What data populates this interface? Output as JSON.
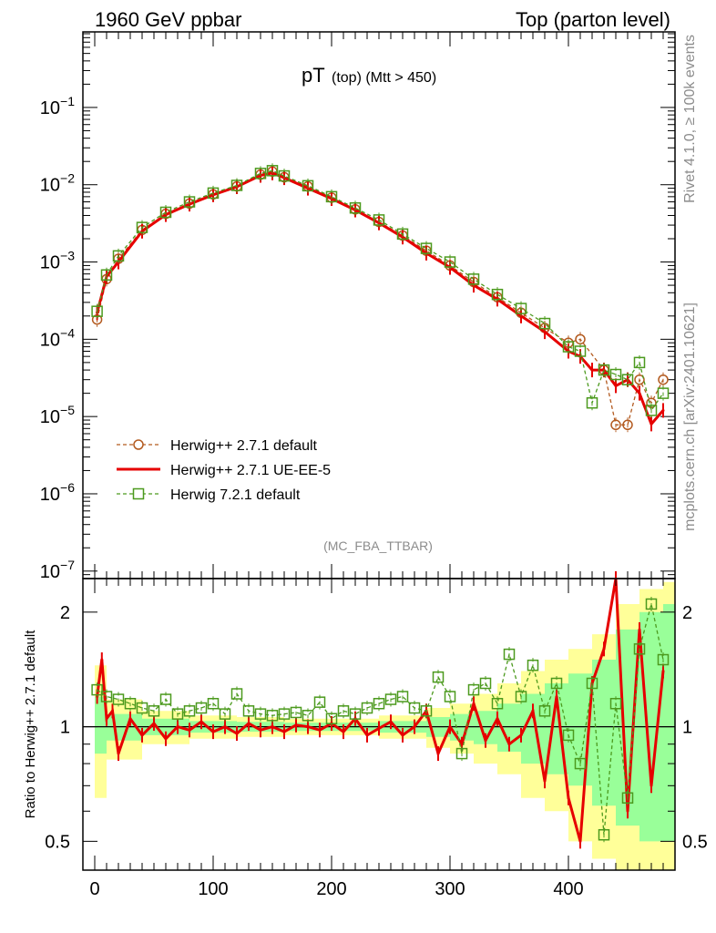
{
  "header": {
    "left": "1960 GeV ppbar",
    "right": "Top (parton level)"
  },
  "side_text": {
    "top": "Rivet 4.1.0, ≥ 100k events",
    "bottom": "mcplots.cern.ch [arXiv:2401.10621]"
  },
  "colors": {
    "herwigpp_default": "#b35a1f",
    "herwigpp_ueee5": "#e60000",
    "herwig721": "#4c9a1e",
    "band_yellow": "#ffff99",
    "band_green": "#99ff99"
  },
  "chart_data": [
    {
      "type": "line",
      "title_main": "pT",
      "title_sub": "(top) (Mtt > 450)",
      "analysis_tag": "(MC_FBA_TTBAR)",
      "xlabel": "",
      "ylabel": "",
      "yscale": "log",
      "xlim": [
        -10,
        490
      ],
      "ylim": [
        8e-08,
        0.95
      ],
      "ytick_labels": [
        {
          "exp": "-1",
          "value": 0.1
        },
        {
          "exp": "-2",
          "value": 0.01
        },
        {
          "exp": "-3",
          "value": 0.001
        },
        {
          "exp": "-4",
          "value": 0.0001
        },
        {
          "exp": "-5",
          "value": 1e-05
        },
        {
          "exp": "-6",
          "value": 1e-06
        },
        {
          "exp": "-7",
          "value": 1e-07
        }
      ],
      "ytick_base": "10",
      "legend": [
        {
          "label": "Herwig++ 2.7.1 default",
          "series": "herwigpp_default"
        },
        {
          "label": "Herwig++ 2.7.1 UE-EE-5",
          "series": "herwigpp_ueee5"
        },
        {
          "label": "Herwig 7.2.1 default",
          "series": "herwig721"
        }
      ],
      "series": [
        {
          "name": "Herwig++ 2.7.1 default",
          "key": "herwigpp_default",
          "x": [
            2,
            10,
            20,
            40,
            60,
            80,
            100,
            120,
            140,
            150,
            160,
            180,
            200,
            220,
            240,
            260,
            280,
            300,
            320,
            340,
            360,
            380,
            400,
            410,
            430,
            440,
            450,
            460,
            470,
            480
          ],
          "y": [
            0.00018,
            0.0006,
            0.0011,
            0.0026,
            0.0042,
            0.0057,
            0.0075,
            0.0095,
            0.0135,
            0.0148,
            0.0125,
            0.0095,
            0.0068,
            0.0048,
            0.0033,
            0.0022,
            0.0014,
            0.0009,
            0.00055,
            0.00035,
            0.00022,
            0.00014,
            9e-05,
            0.0001,
            4e-05,
            7.8e-06,
            7.8e-06,
            3e-05,
            1.5e-05,
            3e-05
          ]
        },
        {
          "name": "Herwig++ 2.7.1 UE-EE-5",
          "key": "herwigpp_ueee5",
          "x": [
            2,
            10,
            20,
            40,
            60,
            80,
            100,
            120,
            140,
            150,
            160,
            180,
            200,
            220,
            240,
            260,
            280,
            300,
            320,
            340,
            360,
            380,
            400,
            410,
            420,
            430,
            440,
            450,
            460,
            470,
            480
          ],
          "y": [
            0.00022,
            0.00065,
            0.001,
            0.0025,
            0.0041,
            0.0056,
            0.0074,
            0.0094,
            0.0132,
            0.0142,
            0.0123,
            0.009,
            0.0066,
            0.0047,
            0.0032,
            0.0021,
            0.0013,
            0.00085,
            0.0005,
            0.00033,
            0.0002,
            0.000125,
            7e-05,
            6e-05,
            4e-05,
            4e-05,
            2.5e-05,
            3e-05,
            2e-05,
            8e-06,
            1.2e-05
          ]
        },
        {
          "name": "Herwig 7.2.1 default",
          "key": "herwig721",
          "x": [
            2,
            10,
            20,
            40,
            60,
            80,
            100,
            120,
            140,
            150,
            160,
            180,
            200,
            220,
            240,
            260,
            280,
            300,
            320,
            340,
            360,
            380,
            400,
            410,
            420,
            430,
            440,
            450,
            460,
            470,
            480
          ],
          "y": [
            0.00023,
            0.00068,
            0.0012,
            0.0028,
            0.0044,
            0.006,
            0.0078,
            0.0098,
            0.014,
            0.0152,
            0.013,
            0.0097,
            0.007,
            0.005,
            0.0035,
            0.0023,
            0.0015,
            0.001,
            0.0006,
            0.00038,
            0.00025,
            0.00016,
            8e-05,
            7e-05,
            1.5e-05,
            4e-05,
            3.5e-05,
            3e-05,
            5e-05,
            1.2e-05,
            2e-05
          ]
        }
      ]
    },
    {
      "type": "line",
      "ylabel": "Ratio to Herwig++ 2.7.1 default",
      "xlabel": "",
      "yscale": "log",
      "xlim": [
        -10,
        490
      ],
      "ylim": [
        0.42,
        2.45
      ],
      "xtick_labels": [
        "0",
        "100",
        "200",
        "300",
        "400"
      ],
      "xtick_values": [
        0,
        100,
        200,
        300,
        400
      ],
      "ytick_labels": [
        "2",
        "1",
        "0.5"
      ],
      "ytick_values": [
        2,
        1,
        0.5
      ],
      "bands": {
        "x": [
          0,
          10,
          40,
          80,
          120,
          160,
          200,
          240,
          280,
          300,
          320,
          340,
          360,
          380,
          400,
          420,
          440,
          460,
          480
        ],
        "yellow_lo": [
          0.65,
          0.82,
          0.9,
          0.93,
          0.94,
          0.95,
          0.95,
          0.93,
          0.88,
          0.85,
          0.8,
          0.75,
          0.65,
          0.6,
          0.5,
          0.45,
          0.42,
          0.42,
          0.42
        ],
        "yellow_hi": [
          1.45,
          1.18,
          1.1,
          1.07,
          1.06,
          1.05,
          1.05,
          1.07,
          1.12,
          1.15,
          1.22,
          1.3,
          1.4,
          1.5,
          1.6,
          1.75,
          2.1,
          2.3,
          2.4
        ],
        "green_lo": [
          0.85,
          0.92,
          0.95,
          0.965,
          0.97,
          0.975,
          0.975,
          0.965,
          0.94,
          0.92,
          0.9,
          0.86,
          0.8,
          0.75,
          0.7,
          0.62,
          0.55,
          0.5,
          0.5
        ],
        "green_hi": [
          1.2,
          1.08,
          1.05,
          1.035,
          1.03,
          1.025,
          1.025,
          1.035,
          1.06,
          1.08,
          1.1,
          1.15,
          1.22,
          1.3,
          1.38,
          1.5,
          1.8,
          2.0,
          2.1
        ]
      },
      "series": [
        {
          "name": "Herwig++ 2.7.1 UE-EE-5",
          "key": "herwigpp_ueee5",
          "x": [
            2,
            6,
            10,
            15,
            20,
            30,
            40,
            50,
            60,
            70,
            80,
            90,
            100,
            110,
            120,
            130,
            140,
            150,
            160,
            170,
            180,
            190,
            200,
            210,
            220,
            230,
            240,
            250,
            260,
            270,
            280,
            290,
            300,
            310,
            320,
            330,
            340,
            350,
            360,
            370,
            380,
            390,
            400,
            410,
            420,
            430,
            440,
            450,
            460,
            470,
            480
          ],
          "y": [
            1.2,
            1.5,
            1.05,
            1.1,
            0.85,
            1.05,
            0.95,
            1.02,
            0.93,
            1.0,
            0.98,
            1.03,
            0.97,
            1.0,
            0.96,
            1.02,
            0.98,
            1.0,
            0.97,
            1.01,
            1.0,
            0.98,
            1.02,
            0.97,
            1.05,
            0.95,
            0.99,
            1.03,
            0.95,
            1.0,
            1.1,
            0.85,
            1.0,
            0.9,
            1.15,
            0.92,
            1.05,
            0.9,
            0.95,
            1.1,
            0.72,
            1.2,
            0.65,
            0.5,
            1.3,
            1.6,
            2.45,
            0.6,
            1.8,
            0.7,
            1.4
          ]
        },
        {
          "name": "Herwig 7.2.1 default",
          "key": "herwig721",
          "x": [
            2,
            10,
            20,
            30,
            40,
            50,
            60,
            70,
            80,
            90,
            100,
            110,
            120,
            130,
            140,
            150,
            160,
            170,
            180,
            190,
            200,
            210,
            220,
            230,
            240,
            250,
            260,
            270,
            280,
            290,
            300,
            310,
            320,
            330,
            340,
            350,
            360,
            370,
            380,
            390,
            400,
            410,
            420,
            430,
            440,
            450,
            460,
            470,
            480
          ],
          "y": [
            1.25,
            1.2,
            1.18,
            1.15,
            1.12,
            1.1,
            1.18,
            1.08,
            1.1,
            1.12,
            1.15,
            1.08,
            1.22,
            1.1,
            1.08,
            1.07,
            1.08,
            1.09,
            1.07,
            1.16,
            1.05,
            1.1,
            1.08,
            1.12,
            1.15,
            1.18,
            1.2,
            1.12,
            1.1,
            1.35,
            1.2,
            0.85,
            1.25,
            1.3,
            1.15,
            1.55,
            1.2,
            1.45,
            1.1,
            1.3,
            0.95,
            0.8,
            1.3,
            0.52,
            1.15,
            0.65,
            1.6,
            2.1,
            1.5
          ]
        }
      ]
    }
  ]
}
